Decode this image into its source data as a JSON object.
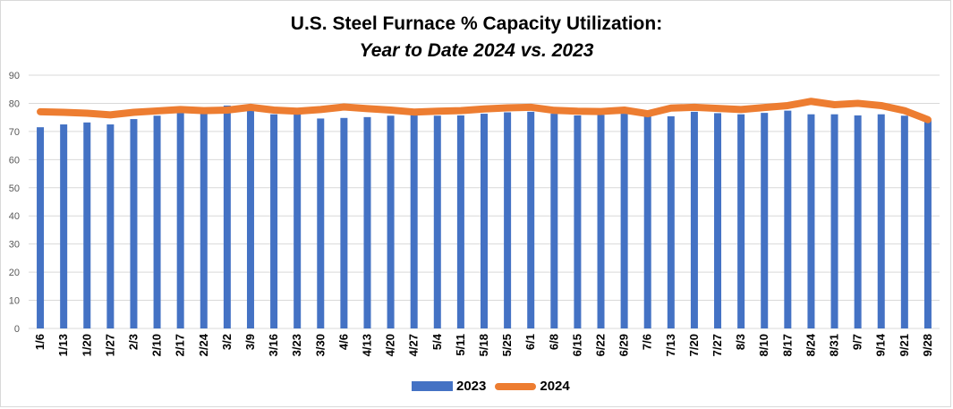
{
  "chart_data": {
    "type": "bar",
    "title": "U.S. Steel Furnace % Capacity Utilization:",
    "subtitle": "Year to Date 2024 vs. 2023",
    "xlabel": "",
    "ylabel": "",
    "ylim": [
      0,
      90
    ],
    "yticks": [
      0,
      10,
      20,
      30,
      40,
      50,
      60,
      70,
      80,
      90
    ],
    "grid": true,
    "legend": "bottom",
    "categories": [
      "1/6",
      "1/13",
      "1/20",
      "1/27",
      "2/3",
      "2/10",
      "2/17",
      "2/24",
      "3/2",
      "3/9",
      "3/16",
      "3/23",
      "3/30",
      "4/6",
      "4/13",
      "4/20",
      "4/27",
      "5/4",
      "5/11",
      "5/18",
      "5/25",
      "6/1",
      "6/8",
      "6/15",
      "6/22",
      "6/29",
      "7/6",
      "7/13",
      "7/20",
      "7/27",
      "8/3",
      "8/10",
      "8/17",
      "8/24",
      "8/31",
      "9/7",
      "9/14",
      "9/21",
      "9/28"
    ],
    "series": [
      {
        "name": "2023",
        "type": "bar",
        "color": "#4472c4",
        "values": [
          71.5,
          72.5,
          73.2,
          72.5,
          74.4,
          75.6,
          76.5,
          76.8,
          79.2,
          77.3,
          76.1,
          76.4,
          74.6,
          74.8,
          75.1,
          75.6,
          75.8,
          75.6,
          75.7,
          76.3,
          76.8,
          77.0,
          76.3,
          75.7,
          75.9,
          76.3,
          75.6,
          75.4,
          77.0,
          76.5,
          76.1,
          76.6,
          77.4,
          76.1,
          76.1,
          75.7,
          76.1,
          75.6,
          74.2
        ]
      },
      {
        "name": "2024",
        "type": "line",
        "color": "#ed7d31",
        "values": [
          77.0,
          76.8,
          76.5,
          75.9,
          76.8,
          77.3,
          77.8,
          77.4,
          77.6,
          78.6,
          77.6,
          77.2,
          77.8,
          78.7,
          78.1,
          77.6,
          76.9,
          77.2,
          77.4,
          78.0,
          78.4,
          78.6,
          77.5,
          77.2,
          77.1,
          77.6,
          76.3,
          78.3,
          78.6,
          78.2,
          77.8,
          78.5,
          79.2,
          80.7,
          79.5,
          80.0,
          79.2,
          77.4,
          74.2
        ]
      }
    ]
  }
}
